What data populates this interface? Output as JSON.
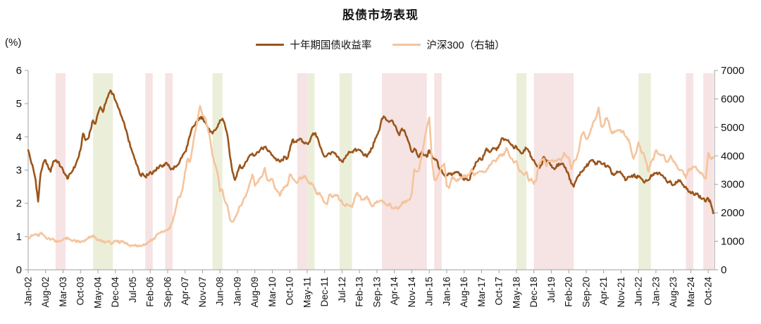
{
  "title": "股债市场表现",
  "chart_data": {
    "type": "line",
    "title": "股债市场表现",
    "grid": false,
    "legend_position": "top-center",
    "left_axis": {
      "label": "(%)",
      "min": 0,
      "max": 6,
      "ticks": [
        0,
        1,
        2,
        3,
        4,
        5,
        6
      ]
    },
    "right_axis": {
      "min": 0,
      "max": 7000,
      "ticks": [
        0,
        1000,
        2000,
        3000,
        4000,
        5000,
        6000,
        7000
      ]
    },
    "x_start": "2002-01",
    "x_end": "2024-12",
    "x_tick_labels": [
      "Jan-02",
      "Aug-02",
      "Mar-03",
      "Oct-03",
      "May-04",
      "Dec-04",
      "Jul-05",
      "Feb-06",
      "Sep-06",
      "Apr-07",
      "Nov-07",
      "Jun-08",
      "Jan-09",
      "Aug-09",
      "Mar-10",
      "Oct-10",
      "May-11",
      "Dec-11",
      "Jul-12",
      "Feb-13",
      "Sep-13",
      "Apr-14",
      "Nov-14",
      "Jun-15",
      "Jan-16",
      "Aug-16",
      "Mar-17",
      "Oct-17",
      "May-18",
      "Dec-18",
      "Jul-19",
      "Feb-20",
      "Sep-20",
      "Apr-21",
      "Nov-21",
      "Jun-22",
      "Jan-23",
      "Aug-23",
      "Mar-24",
      "Oct-24"
    ],
    "band_colors": {
      "pink": "#F6E3E3",
      "green": "#EBEFDA"
    },
    "bands": [
      {
        "from": "2002-12",
        "to": "2003-04",
        "color": "pink"
      },
      {
        "from": "2004-03",
        "to": "2004-11",
        "color": "green"
      },
      {
        "from": "2005-12",
        "to": "2006-03",
        "color": "pink"
      },
      {
        "from": "2006-08",
        "to": "2006-11",
        "color": "pink"
      },
      {
        "from": "2008-03",
        "to": "2008-07",
        "color": "green"
      },
      {
        "from": "2011-01",
        "to": "2011-05",
        "color": "pink"
      },
      {
        "from": "2011-05",
        "to": "2011-08",
        "color": "green"
      },
      {
        "from": "2012-06",
        "to": "2012-11",
        "color": "green"
      },
      {
        "from": "2013-11",
        "to": "2015-05",
        "color": "pink"
      },
      {
        "from": "2015-08",
        "to": "2015-11",
        "color": "pink"
      },
      {
        "from": "2018-05",
        "to": "2018-09",
        "color": "green"
      },
      {
        "from": "2018-12",
        "to": "2020-04",
        "color": "pink"
      },
      {
        "from": "2022-06",
        "to": "2022-11",
        "color": "green"
      },
      {
        "from": "2024-01",
        "to": "2024-04",
        "color": "pink"
      },
      {
        "from": "2024-08",
        "to": "2024-12",
        "color": "pink"
      }
    ],
    "series": [
      {
        "name": "十年期国债收益率",
        "axis": "left",
        "color": "#9B551C",
        "start": "2002-01",
        "monthly_values": [
          3.6,
          3.3,
          3.05,
          2.7,
          2.05,
          2.9,
          3.2,
          3.3,
          3.1,
          2.95,
          3.25,
          3.3,
          3.25,
          3.1,
          3.0,
          2.85,
          2.75,
          2.9,
          3.0,
          3.15,
          3.35,
          3.6,
          4.1,
          3.9,
          3.95,
          4.2,
          4.5,
          4.4,
          4.7,
          4.9,
          4.75,
          5.0,
          5.2,
          5.4,
          5.3,
          5.1,
          4.9,
          4.7,
          4.5,
          4.25,
          4.0,
          3.7,
          3.5,
          3.3,
          3.1,
          2.85,
          2.9,
          2.8,
          2.85,
          2.95,
          2.9,
          3.0,
          3.05,
          3.15,
          3.1,
          3.2,
          3.15,
          3.05,
          3.05,
          3.1,
          3.15,
          3.3,
          3.45,
          3.55,
          3.75,
          4.05,
          4.3,
          4.35,
          4.5,
          4.55,
          4.6,
          4.45,
          4.3,
          4.15,
          4.1,
          4.2,
          4.3,
          4.5,
          4.55,
          4.35,
          4.05,
          3.4,
          2.95,
          2.7,
          2.95,
          3.15,
          3.05,
          3.2,
          3.3,
          3.45,
          3.5,
          3.45,
          3.55,
          3.6,
          3.65,
          3.7,
          3.6,
          3.55,
          3.45,
          3.35,
          3.3,
          3.25,
          3.3,
          3.4,
          3.35,
          3.6,
          3.9,
          3.85,
          3.9,
          3.95,
          3.85,
          3.8,
          3.8,
          3.85,
          4.05,
          4.1,
          4.0,
          3.75,
          3.55,
          3.4,
          3.45,
          3.5,
          3.55,
          3.5,
          3.4,
          3.3,
          3.25,
          3.35,
          3.45,
          3.55,
          3.55,
          3.6,
          3.6,
          3.6,
          3.55,
          3.45,
          3.4,
          3.55,
          3.65,
          3.85,
          4.05,
          4.2,
          4.55,
          4.6,
          4.5,
          4.45,
          4.5,
          4.35,
          4.2,
          4.05,
          4.25,
          4.2,
          4.0,
          3.8,
          3.55,
          3.65,
          3.5,
          3.4,
          3.55,
          3.45,
          3.4,
          3.6,
          3.45,
          3.35,
          3.3,
          3.05,
          3.0,
          2.85,
          2.85,
          2.9,
          2.85,
          2.9,
          2.95,
          2.9,
          2.8,
          2.7,
          2.75,
          2.7,
          2.9,
          3.1,
          3.25,
          3.35,
          3.3,
          3.45,
          3.65,
          3.55,
          3.6,
          3.65,
          3.6,
          3.75,
          3.95,
          3.9,
          3.9,
          3.85,
          3.75,
          3.65,
          3.7,
          3.6,
          3.5,
          3.6,
          3.65,
          3.55,
          3.4,
          3.3,
          3.15,
          3.1,
          3.15,
          3.4,
          3.3,
          3.25,
          3.15,
          3.05,
          3.1,
          3.2,
          3.2,
          3.15,
          3.0,
          2.85,
          2.6,
          2.5,
          2.7,
          2.85,
          2.95,
          3.0,
          3.1,
          3.2,
          3.3,
          3.25,
          3.2,
          3.25,
          3.2,
          3.2,
          3.1,
          3.1,
          2.95,
          2.85,
          2.9,
          2.95,
          2.9,
          2.8,
          2.7,
          2.8,
          2.8,
          2.85,
          2.8,
          2.8,
          2.75,
          2.65,
          2.7,
          2.7,
          2.85,
          2.85,
          2.9,
          2.9,
          2.85,
          2.8,
          2.7,
          2.65,
          2.65,
          2.55,
          2.65,
          2.7,
          2.65,
          2.55,
          2.5,
          2.35,
          2.3,
          2.3,
          2.3,
          2.25,
          2.15,
          2.15,
          2.05,
          2.15,
          2.0,
          1.7
        ]
      },
      {
        "name": "沪深300（右轴）",
        "axis": "right",
        "color": "#F5C49D",
        "start": "2002-01",
        "monthly_values": [
          1120,
          1160,
          1210,
          1250,
          1190,
          1280,
          1230,
          1150,
          1100,
          1050,
          1080,
          1020,
          980,
          1010,
          1060,
          1120,
          1080,
          1050,
          1030,
          1000,
          990,
          960,
          1000,
          1030,
          1100,
          1160,
          1190,
          1140,
          1050,
          1010,
          990,
          970,
          1000,
          950,
          930,
          1000,
          980,
          970,
          1010,
          950,
          880,
          820,
          860,
          880,
          850,
          830,
          860,
          900,
          960,
          1030,
          1060,
          1130,
          1250,
          1290,
          1330,
          1380,
          1400,
          1500,
          1700,
          2040,
          2480,
          2550,
          2850,
          3450,
          3900,
          3800,
          4300,
          4850,
          5300,
          5750,
          5450,
          5340,
          5000,
          4600,
          4000,
          3700,
          3400,
          2750,
          2800,
          2400,
          2250,
          1750,
          1690,
          1820,
          2000,
          2240,
          2350,
          2550,
          2750,
          3050,
          3350,
          2950,
          3060,
          3200,
          3300,
          3580,
          3150,
          3120,
          3180,
          2870,
          2750,
          2600,
          2800,
          2900,
          2950,
          3350,
          3230,
          3130,
          3050,
          3250,
          3220,
          3300,
          3150,
          3050,
          3000,
          2850,
          2650,
          2700,
          2550,
          2350,
          2300,
          2650,
          2550,
          2600,
          2630,
          2450,
          2380,
          2260,
          2290,
          2250,
          2200,
          2520,
          2700,
          2600,
          2450,
          2460,
          2580,
          2400,
          2220,
          2330,
          2410,
          2400,
          2440,
          2330,
          2250,
          2330,
          2160,
          2180,
          2160,
          2170,
          2340,
          2380,
          2420,
          2450,
          2680,
          3530,
          3450,
          3550,
          4000,
          4500,
          5000,
          5350,
          3900,
          3160,
          3200,
          3400,
          3650,
          3730,
          2940,
          2870,
          3220,
          3230,
          3110,
          3200,
          3250,
          3330,
          3250,
          3340,
          3540,
          3310,
          3390,
          3450,
          3460,
          3440,
          3480,
          3670,
          3740,
          3830,
          3840,
          4020,
          4050,
          4030,
          4280,
          4050,
          3900,
          3760,
          3820,
          3510,
          3430,
          3330,
          3440,
          3120,
          3200,
          3010,
          3170,
          3680,
          3870,
          3910,
          3630,
          3825,
          3830,
          3800,
          3815,
          3890,
          3830,
          4100,
          4000,
          3940,
          3530,
          3830,
          3870,
          4160,
          4700,
          4840,
          4590,
          4700,
          4960,
          5210,
          5350,
          5700,
          5050,
          5080,
          5330,
          5220,
          4850,
          4800,
          4870,
          4910,
          4840,
          4850,
          4660,
          4570,
          4220,
          3900,
          4090,
          4480,
          4170,
          4100,
          3800,
          3450,
          3800,
          3870,
          4200,
          4070,
          4050,
          4030,
          3800,
          3840,
          4010,
          3790,
          3690,
          3540,
          3500,
          3430,
          3220,
          3520,
          3540,
          3600,
          3620,
          3460,
          3390,
          3310,
          3200,
          4100,
          3920,
          3940
        ]
      }
    ]
  }
}
